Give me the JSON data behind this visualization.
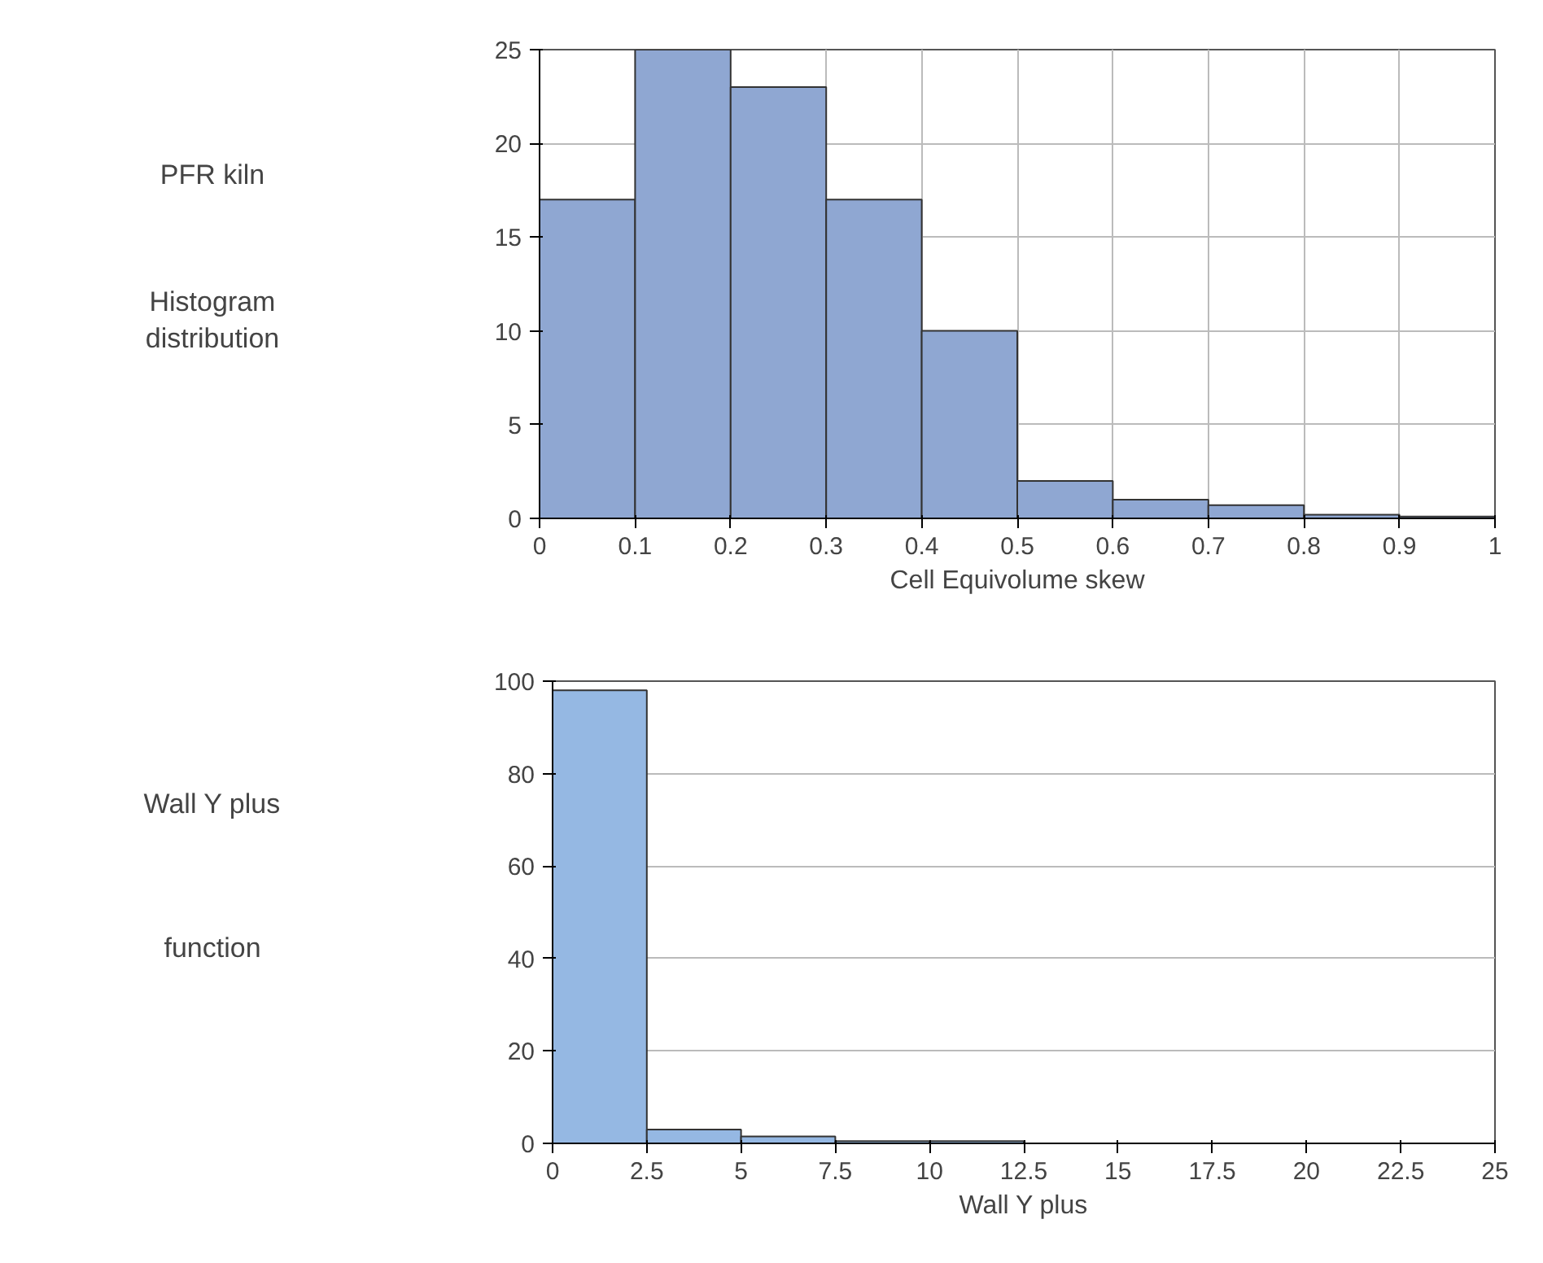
{
  "chart_data": [
    {
      "type": "histogram",
      "xlabel": "Cell Equivolume skew",
      "annotations": [
        "PFR kiln",
        "Histogram distribution"
      ],
      "bins": [
        0,
        0.1,
        0.2,
        0.3,
        0.4,
        0.5,
        0.6,
        0.7,
        0.8,
        0.9,
        1.0
      ],
      "values": [
        17,
        25,
        23,
        17,
        10,
        2,
        1,
        0.7,
        0.2,
        0.1
      ],
      "color": "#8fa7d2",
      "xlim": [
        0,
        1
      ],
      "xticks": [
        0,
        0.1,
        0.2,
        0.3,
        0.4,
        0.5,
        0.6,
        0.7,
        0.8,
        0.9,
        1
      ],
      "ylim": [
        0,
        25
      ],
      "yticks": [
        0,
        5,
        10,
        15,
        20,
        25
      ],
      "grid": true
    },
    {
      "type": "histogram",
      "xlabel": "Wall Y plus",
      "annotations": [
        "Wall Y plus",
        "function"
      ],
      "bins": [
        0,
        2.5,
        5,
        7.5,
        10,
        12.5,
        15,
        17.5,
        20,
        22.5,
        25
      ],
      "values": [
        98,
        3,
        1.5,
        0.5,
        0.5,
        0,
        0,
        0,
        0,
        0
      ],
      "color": "#95b8e3",
      "xlim": [
        0,
        25
      ],
      "xticks": [
        0,
        2.5,
        5,
        7.5,
        10,
        12.5,
        15,
        17.5,
        20,
        22.5,
        25
      ],
      "ylim": [
        0,
        100
      ],
      "yticks": [
        0,
        20,
        40,
        60,
        80,
        100
      ],
      "grid": "y"
    }
  ]
}
